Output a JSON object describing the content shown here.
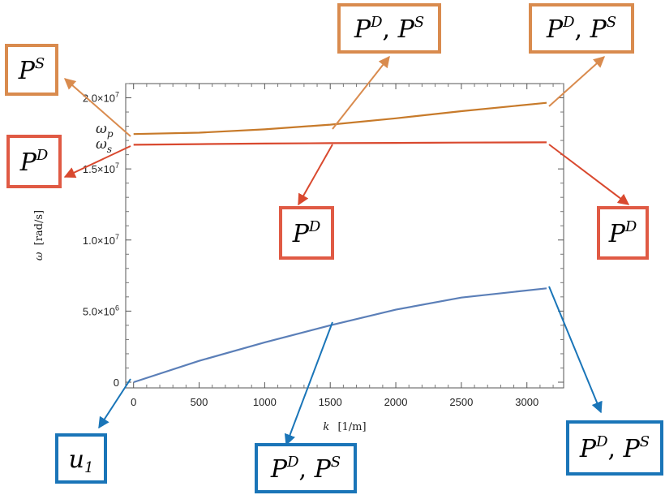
{
  "chart_data": {
    "type": "line",
    "xlabel_var": "k",
    "xlabel_unit": "[1/m]",
    "ylabel_var": "ω",
    "ylabel_unit": "[rad/s]",
    "xlim": [
      -60,
      3280
    ],
    "ylim": [
      -400000,
      21000000
    ],
    "x_ticks": [
      0,
      500,
      1000,
      1500,
      2000,
      2500,
      3000
    ],
    "x_tick_labels": [
      "0",
      "500",
      "1000",
      "1500",
      "2000",
      "2500",
      "3000"
    ],
    "y_ticks": [
      0,
      5000000,
      10000000,
      15000000,
      20000000
    ],
    "y_tick_labels": [
      {
        "base": "0",
        "exp": ""
      },
      {
        "base": "5.0×10",
        "exp": "6"
      },
      {
        "base": "1.0×10",
        "exp": "7"
      },
      {
        "base": "1.5×10",
        "exp": "7"
      },
      {
        "base": "2.0×10",
        "exp": "7"
      }
    ],
    "series": [
      {
        "id": "upper",
        "color": "#c77a2a",
        "x": [
          0,
          500,
          1000,
          1500,
          2000,
          2500,
          3150
        ],
        "y": [
          17450000,
          17550000,
          17780000,
          18110000,
          18560000,
          19060000,
          19650000
        ]
      },
      {
        "id": "middle",
        "color": "#d9492f",
        "x": [
          0,
          500,
          1000,
          1500,
          2000,
          2500,
          3150
        ],
        "y": [
          16700000,
          16740000,
          16780000,
          16810000,
          16830000,
          16850000,
          16870000
        ]
      },
      {
        "id": "lower",
        "color": "#5b7fb8",
        "x": [
          0,
          500,
          1000,
          1500,
          2000,
          2500,
          3150
        ],
        "y": [
          0,
          1500000,
          2800000,
          4000000,
          5100000,
          5950000,
          6600000
        ]
      }
    ],
    "level_labels": [
      {
        "base": "ω",
        "sub": "p"
      },
      {
        "base": "ω",
        "sub": "s"
      }
    ]
  },
  "annotations": [
    {
      "id": "box-ps-left",
      "base": "P",
      "sup": "S",
      "sep": "",
      "base2": "",
      "sup2": "",
      "color": "#d98b4e",
      "text_color": "#000000"
    },
    {
      "id": "box-pd-left",
      "base": "P",
      "sup": "D",
      "sep": "",
      "base2": "",
      "sup2": "",
      "color": "#e05a44",
      "text_color": "#000000"
    },
    {
      "id": "box-pdps-top-mid",
      "base": "P",
      "sup": "D",
      "sep": ", ",
      "base2": "P",
      "sup2": "S",
      "color": "#d98b4e",
      "text_color": "#000000"
    },
    {
      "id": "box-pdps-top-right",
      "base": "P",
      "sup": "D",
      "sep": ", ",
      "base2": "P",
      "sup2": "S",
      "color": "#d98b4e",
      "text_color": "#000000"
    },
    {
      "id": "box-pd-mid",
      "base": "P",
      "sup": "D",
      "sep": "",
      "base2": "",
      "sup2": "",
      "color": "#e05a44",
      "text_color": "#000000"
    },
    {
      "id": "box-pd-right",
      "base": "P",
      "sup": "D",
      "sep": "",
      "base2": "",
      "sup2": "",
      "color": "#e05a44",
      "text_color": "#000000"
    },
    {
      "id": "box-u1",
      "base": "u",
      "sup": "",
      "sub": "1",
      "sep": "",
      "base2": "",
      "sup2": "",
      "color": "#1a75b8",
      "text_color": "#000000"
    },
    {
      "id": "box-pdps-bottom-mid",
      "base": "P",
      "sup": "D",
      "sep": ", ",
      "base2": "P",
      "sup2": "S",
      "color": "#1a75b8",
      "text_color": "#000000"
    },
    {
      "id": "box-pdps-bottom-right",
      "base": "P",
      "sup": "D",
      "sep": ", ",
      "base2": "P",
      "sup2": "S",
      "color": "#1a75b8",
      "text_color": "#000000"
    }
  ]
}
